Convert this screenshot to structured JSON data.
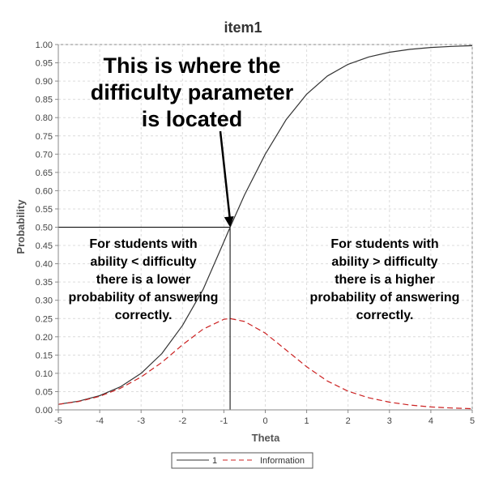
{
  "chart_data": {
    "type": "line",
    "title": "item1",
    "xlabel": "Theta",
    "ylabel": "Probability",
    "xlim": [
      -5,
      5
    ],
    "ylim": [
      0,
      1
    ],
    "x_ticks": [
      "-5",
      "-4",
      "-3",
      "-2",
      "-1",
      "0",
      "1",
      "2",
      "3",
      "4",
      "5"
    ],
    "y_ticks": [
      "0.00",
      "0.05",
      "0.10",
      "0.15",
      "0.20",
      "0.25",
      "0.30",
      "0.35",
      "0.40",
      "0.45",
      "0.50",
      "0.55",
      "0.60",
      "0.65",
      "0.70",
      "0.75",
      "0.80",
      "0.85",
      "0.90",
      "0.95",
      "1.00"
    ],
    "grid": true,
    "legend_position": "bottom",
    "series": [
      {
        "name": "1",
        "style": "solid",
        "color": "#333333",
        "x": [
          -5,
          -4.5,
          -4,
          -3.5,
          -3,
          -2.5,
          -2,
          -1.5,
          -1,
          -0.85,
          -0.5,
          0,
          0.5,
          1,
          1.5,
          2,
          2.5,
          3,
          3.5,
          4,
          4.5,
          5
        ],
        "y": [
          0.015,
          0.024,
          0.039,
          0.063,
          0.1,
          0.154,
          0.231,
          0.33,
          0.46,
          0.5,
          0.589,
          0.7,
          0.794,
          0.864,
          0.914,
          0.946,
          0.966,
          0.979,
          0.987,
          0.992,
          0.995,
          0.997
        ]
      },
      {
        "name": "Information",
        "style": "dashed",
        "color": "#cc2222",
        "x": [
          -5,
          -4.5,
          -4,
          -3.5,
          -3,
          -2.5,
          -2,
          -1.5,
          -1,
          -0.85,
          -0.5,
          0,
          0.5,
          1,
          1.5,
          2,
          2.5,
          3,
          3.5,
          4,
          4.5,
          5
        ],
        "y": [
          0.015,
          0.023,
          0.037,
          0.059,
          0.09,
          0.13,
          0.178,
          0.221,
          0.248,
          0.25,
          0.242,
          0.21,
          0.164,
          0.118,
          0.079,
          0.051,
          0.033,
          0.021,
          0.013,
          0.008,
          0.005,
          0.003
        ]
      }
    ],
    "difficulty_marker": {
      "x": -0.85,
      "y": 0.5
    },
    "annotations": {
      "difficulty_lines": [
        "This is where the",
        "difficulty parameter",
        "is located"
      ],
      "left_lines": [
        "For students with",
        "ability < difficulty",
        "there is a lower",
        "probability of answering",
        "correctly."
      ],
      "right_lines": [
        "For students with",
        "ability > difficulty",
        "there is a higher",
        "probability of answering",
        "correctly."
      ]
    }
  }
}
